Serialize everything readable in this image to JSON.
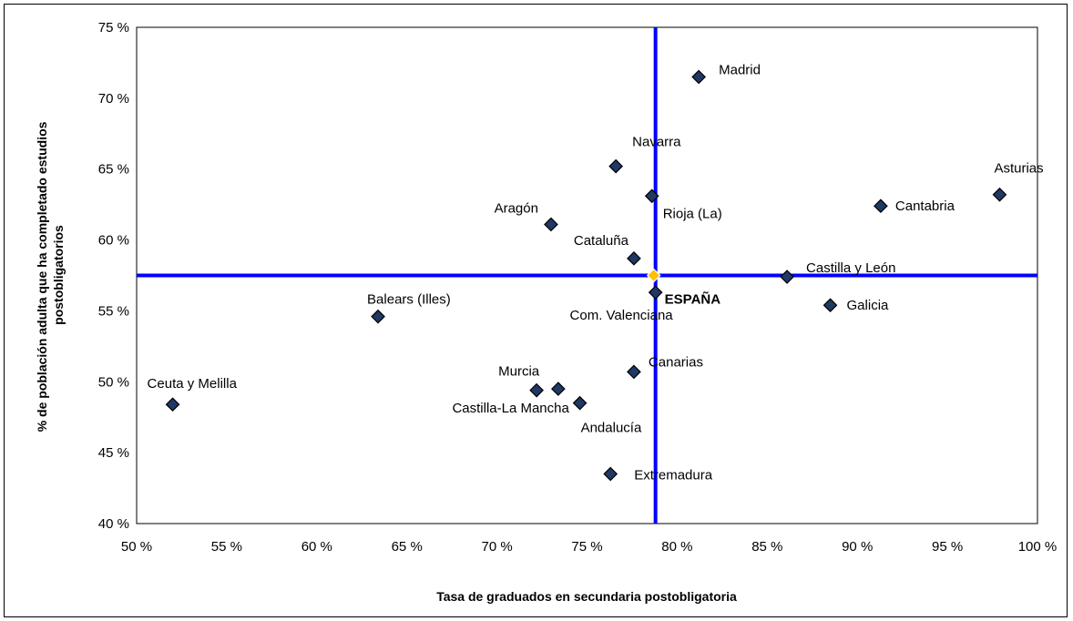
{
  "chart_data": {
    "type": "scatter",
    "title": "",
    "xlabel": "Tasa de graduados en secundaria postobligatoria",
    "ylabel": [
      "% de población adulta que ha completado estudios",
      "postobligatorios"
    ],
    "xlim": [
      50,
      100
    ],
    "ylim": [
      40,
      75
    ],
    "x_ticks": [
      50,
      55,
      60,
      65,
      70,
      75,
      80,
      85,
      90,
      95,
      100
    ],
    "y_ticks": [
      40,
      45,
      50,
      55,
      60,
      65,
      70,
      75
    ],
    "tick_suffix": " %",
    "grid": false,
    "legend": "none",
    "reference_lines": {
      "x": 78.8,
      "y": 57.5,
      "color": "#0000FF"
    },
    "marker_color": "#1F3864",
    "highlight_color": "#FFC000",
    "points": [
      {
        "label": "Madrid",
        "x": 81.2,
        "y": 71.5
      },
      {
        "label": "Navarra",
        "x": 76.6,
        "y": 65.2
      },
      {
        "label": "Asturias",
        "x": 97.9,
        "y": 63.2
      },
      {
        "label": "Rioja (La)",
        "x": 78.6,
        "y": 63.1
      },
      {
        "label": "Cantabria",
        "x": 91.3,
        "y": 62.4
      },
      {
        "label": "Aragón",
        "x": 73.0,
        "y": 61.1
      },
      {
        "label": "Cataluña",
        "x": 77.6,
        "y": 58.7
      },
      {
        "label": "ESPAÑA",
        "x": 78.7,
        "y": 57.5,
        "highlight": true
      },
      {
        "label": "Castilla y León",
        "x": 86.1,
        "y": 57.4
      },
      {
        "label": "Com. Valenciana",
        "x": 78.8,
        "y": 56.3
      },
      {
        "label": "Galicia",
        "x": 88.5,
        "y": 55.4
      },
      {
        "label": "Balears (Illes)",
        "x": 63.4,
        "y": 54.6
      },
      {
        "label": "Canarias",
        "x": 77.6,
        "y": 50.7
      },
      {
        "label": "Murcia",
        "x": 72.2,
        "y": 49.4
      },
      {
        "label": "Castilla-La Mancha",
        "x": 73.4,
        "y": 49.5
      },
      {
        "label": "Andalucía",
        "x": 74.6,
        "y": 48.5
      },
      {
        "label": "Ceuta y Melilla",
        "x": 52.0,
        "y": 48.4
      },
      {
        "label": "Extremadura",
        "x": 76.3,
        "y": 43.5
      }
    ]
  }
}
